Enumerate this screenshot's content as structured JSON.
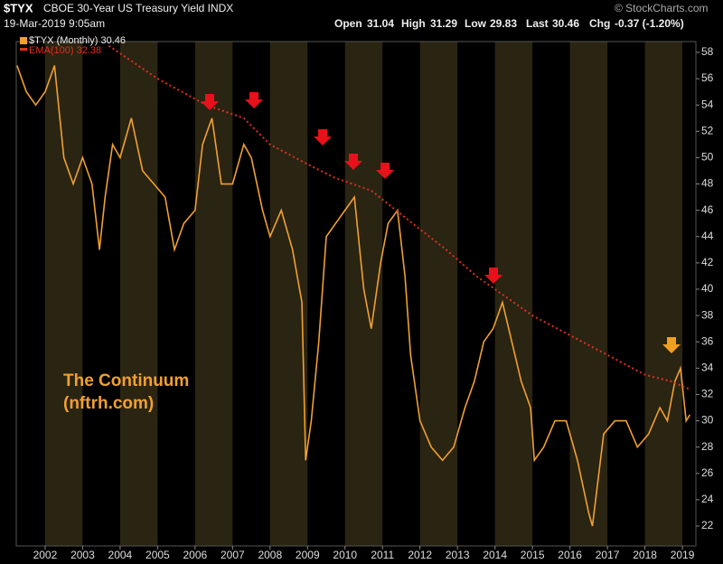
{
  "header": {
    "symbol": "$TYX",
    "name": "CBOE 30-Year US Treasury Yield INDX",
    "date": "19-Mar-2019 9:05am",
    "open_label": "Open",
    "open": 31.04,
    "high_label": "High",
    "high": 31.29,
    "low_label": "Low",
    "low": 29.83,
    "last_label": "Last",
    "last": 30.46,
    "chg_label": "Chg",
    "chg": "-0.37 (-1.20%)",
    "credit": "© StockCharts.com"
  },
  "chart_data": {
    "type": "line",
    "annotation": [
      "The Continuum",
      "(nftrh.com)"
    ],
    "xlim": [
      2001.23,
      2019.36
    ],
    "xticks": [
      2002,
      2003,
      2004,
      2005,
      2006,
      2007,
      2008,
      2009,
      2010,
      2011,
      2012,
      2013,
      2014,
      2015,
      2016,
      2017,
      2018,
      2019
    ],
    "ylim": [
      20.49,
      58.82
    ],
    "yticks": [
      22,
      24,
      26,
      28,
      30,
      32,
      34,
      36,
      38,
      40,
      42,
      44,
      46,
      48,
      50,
      52,
      54,
      56,
      58
    ],
    "x": [
      2001.25,
      2001.5,
      2001.75,
      2002.0,
      2002.25,
      2002.5,
      2002.75,
      2003.0,
      2003.25,
      2003.45,
      2003.6,
      2003.8,
      2004.0,
      2004.3,
      2004.6,
      2004.9,
      2005.2,
      2005.45,
      2005.7,
      2006.0,
      2006.2,
      2006.45,
      2006.7,
      2007.0,
      2007.3,
      2007.5,
      2007.8,
      2008.0,
      2008.3,
      2008.6,
      2008.85,
      2008.95,
      2009.1,
      2009.3,
      2009.5,
      2009.75,
      2010.0,
      2010.25,
      2010.5,
      2010.7,
      2010.95,
      2011.15,
      2011.4,
      2011.6,
      2011.75,
      2012.0,
      2012.3,
      2012.6,
      2012.9,
      2013.2,
      2013.45,
      2013.7,
      2013.95,
      2014.2,
      2014.45,
      2014.7,
      2014.95,
      2015.05,
      2015.3,
      2015.6,
      2015.9,
      2016.2,
      2016.5,
      2016.6,
      2016.9,
      2017.2,
      2017.5,
      2017.8,
      2018.1,
      2018.4,
      2018.6,
      2018.8,
      2018.95,
      2019.1,
      2019.2
    ],
    "series": [
      {
        "name": "$TYX (Monthly) 30.46",
        "color": "#f0a030",
        "values": [
          57,
          55,
          54,
          55,
          57,
          50,
          48,
          50,
          48,
          43,
          47,
          51,
          50,
          53,
          49,
          48,
          47,
          43,
          45,
          46,
          51,
          53,
          48,
          48,
          51,
          50,
          46,
          44,
          46,
          43,
          39,
          27,
          30,
          36,
          44,
          45,
          46,
          47,
          40,
          37,
          42,
          45,
          46,
          41,
          35,
          30,
          28,
          27,
          28,
          31,
          33,
          36,
          37,
          39,
          36,
          33,
          31,
          27,
          28,
          30,
          30,
          27,
          23,
          22,
          29,
          30,
          30,
          28,
          29,
          31,
          30,
          33,
          34,
          30,
          30.46
        ]
      },
      {
        "name": "EMA(100) 32.38",
        "color": "#e03020",
        "dashed": true,
        "x": [
          2003.7,
          2005.0,
          2006.3,
          2007.3,
          2008.0,
          2009.0,
          2009.7,
          2010.7,
          2011.8,
          2012.7,
          2013.5,
          2014.0,
          2015.0,
          2016.0,
          2017.0,
          2018.0,
          2018.7,
          2019.2
        ],
        "values": [
          58.5,
          56,
          54,
          53,
          51,
          49.5,
          48.5,
          47.5,
          45,
          43,
          41,
          40,
          38,
          36.5,
          35,
          33.5,
          33,
          32.38
        ]
      }
    ]
  }
}
